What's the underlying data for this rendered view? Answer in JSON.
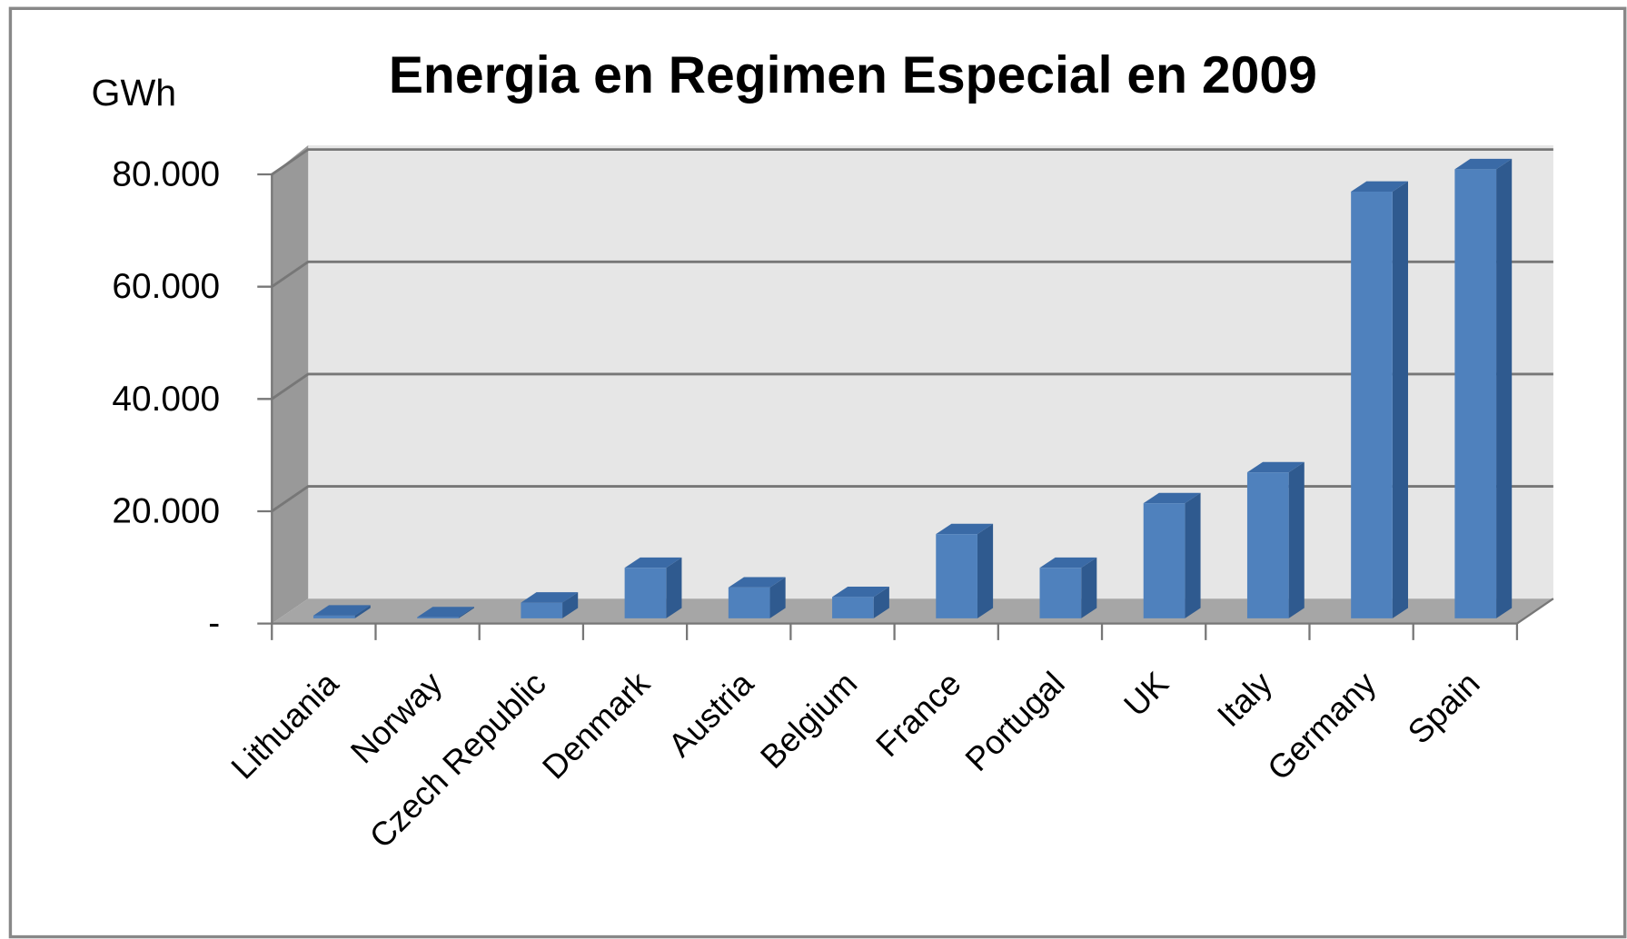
{
  "chart_data": {
    "type": "bar3d",
    "title": "Energia en Regimen Especial en 2009",
    "y_label": "GWh",
    "categories": [
      "Lithuania",
      "Norway",
      "Czech Republic",
      "Denmark",
      "Austria",
      "Belgium",
      "France",
      "Portugal",
      "UK",
      "Italy",
      "Germany",
      "Spain"
    ],
    "values": [
      500,
      200,
      2800,
      9000,
      5500,
      3800,
      15000,
      9000,
      20500,
      26000,
      76000,
      80000
    ],
    "color": "#4f81bd",
    "ylim": [
      0,
      80000
    ],
    "yticks": [
      {
        "value": 0,
        "label": "-"
      },
      {
        "value": 20000,
        "label": "20.000"
      },
      {
        "value": 40000,
        "label": "40.000"
      },
      {
        "value": 60000,
        "label": "60.000"
      },
      {
        "value": 80000,
        "label": "80.000"
      }
    ],
    "grid": true
  }
}
